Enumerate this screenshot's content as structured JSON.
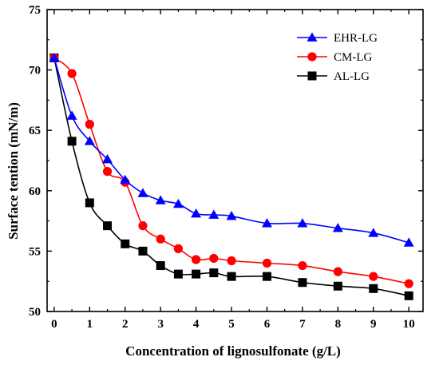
{
  "chart_data": {
    "type": "line",
    "xlabel": "Concentration of lignosulfonate (g/L)",
    "ylabel": "Surface tention (mN/m)",
    "xlim": [
      -0.2,
      10.4
    ],
    "ylim": [
      50,
      75
    ],
    "xticks": [
      0,
      1,
      2,
      3,
      4,
      5,
      6,
      7,
      8,
      9,
      10
    ],
    "yticks": [
      50,
      55,
      60,
      65,
      70,
      75
    ],
    "grid": false,
    "legend_position": "top-right",
    "series": [
      {
        "name": "EHR-LG",
        "color": "#0000ff",
        "marker": "triangle",
        "x": [
          0,
          0.5,
          1,
          1.5,
          2,
          2.5,
          3,
          3.5,
          4,
          4.5,
          5,
          6,
          7,
          8,
          9,
          10
        ],
        "y": [
          71.0,
          66.2,
          64.1,
          62.6,
          60.9,
          59.8,
          59.2,
          58.9,
          58.1,
          58.0,
          57.9,
          57.3,
          57.3,
          56.9,
          56.5,
          55.7
        ]
      },
      {
        "name": "CM-LG",
        "color": "#ff0000",
        "marker": "circle",
        "x": [
          0,
          0.5,
          1,
          1.5,
          2,
          2.5,
          3,
          3.5,
          4,
          4.5,
          5,
          6,
          7,
          8,
          9,
          10
        ],
        "y": [
          71.0,
          69.7,
          65.5,
          61.6,
          60.7,
          57.1,
          56.0,
          55.2,
          54.3,
          54.4,
          54.2,
          54.0,
          53.8,
          53.3,
          52.9,
          52.3
        ]
      },
      {
        "name": "AL-LG",
        "color": "#000000",
        "marker": "square",
        "x": [
          0,
          0.5,
          1,
          1.5,
          2,
          2.5,
          3,
          3.5,
          4,
          4.5,
          5,
          6,
          7,
          8,
          9,
          10
        ],
        "y": [
          71.0,
          64.1,
          59.0,
          57.1,
          55.6,
          55.0,
          53.8,
          53.1,
          53.1,
          53.2,
          52.9,
          52.9,
          52.4,
          52.1,
          51.9,
          51.3
        ]
      }
    ]
  }
}
